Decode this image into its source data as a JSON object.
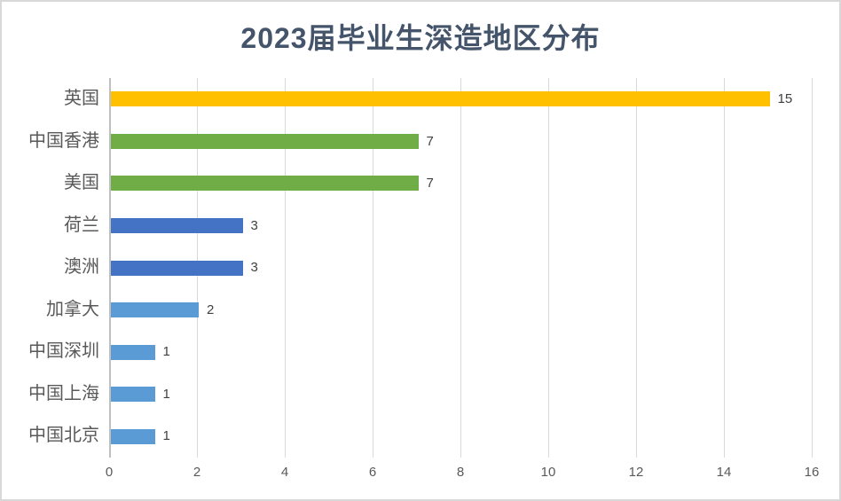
{
  "chart_data": {
    "type": "bar",
    "orientation": "horizontal",
    "title": "2023届毕业生深造地区分布",
    "categories": [
      "英国",
      "中国香港",
      "美国",
      "荷兰",
      "澳洲",
      "加拿大",
      "中国深圳",
      "中国上海",
      "中国北京"
    ],
    "values": [
      15,
      7,
      7,
      3,
      3,
      2,
      1,
      1,
      1
    ],
    "data_labels": [
      "15",
      "7",
      "7",
      "3",
      "3",
      "2",
      "1",
      "1",
      "1"
    ],
    "bar_colors": [
      "#FFC000",
      "#70AD47",
      "#70AD47",
      "#4472C4",
      "#4472C4",
      "#5B9BD5",
      "#5B9BD5",
      "#5B9BD5",
      "#5B9BD5"
    ],
    "xlabel": "",
    "ylabel": "",
    "xlim": [
      0,
      16
    ],
    "xticks": [
      0,
      2,
      4,
      6,
      8,
      10,
      12,
      14,
      16
    ],
    "grid": "vertical-only",
    "legend": "none"
  },
  "styles": {
    "title_color": "#44546A",
    "category_label_color": "#595959",
    "tick_label_color": "#595959",
    "data_label_color": "#404040",
    "gridline_color": "#D9D9D9",
    "axis_line_color": "#BFBFBF",
    "background_color": "#FFFFFF",
    "border_color": "#D8D8D8"
  }
}
